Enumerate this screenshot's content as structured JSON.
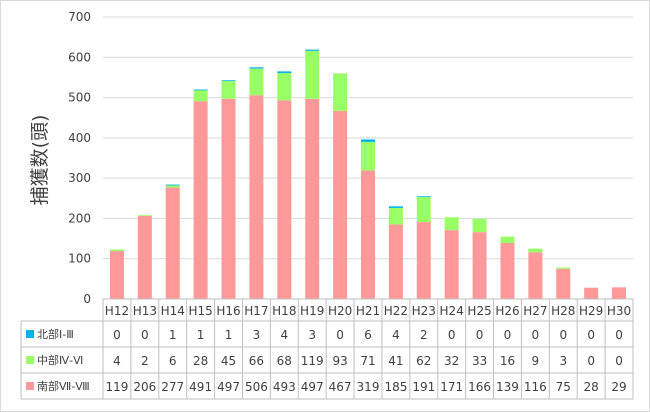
{
  "chart_data": {
    "type": "bar",
    "stacked": true,
    "ylabel": "捕獲数(頭)",
    "ylim": [
      0,
      700
    ],
    "yticks": [
      0,
      100,
      200,
      300,
      400,
      500,
      600,
      700
    ],
    "grid": true,
    "legend_placement": "data-table-left",
    "categories": [
      "H12",
      "H13",
      "H14",
      "H15",
      "H16",
      "H17",
      "H18",
      "H19",
      "H20",
      "H21",
      "H22",
      "H23",
      "H24",
      "H25",
      "H26",
      "H27",
      "H28",
      "H29",
      "H30"
    ],
    "series": [
      {
        "name": "南部Ⅶ-Ⅷ",
        "color": "#ff9999",
        "values": [
          119,
          206,
          277,
          491,
          497,
          506,
          493,
          497,
          467,
          319,
          185,
          191,
          171,
          166,
          139,
          116,
          75,
          28,
          29
        ]
      },
      {
        "name": "中部Ⅳ-Ⅵ",
        "color": "#99ff66",
        "values": [
          4,
          2,
          6,
          28,
          45,
          66,
          68,
          119,
          93,
          71,
          41,
          62,
          32,
          33,
          16,
          9,
          3,
          0,
          0
        ]
      },
      {
        "name": "北部Ⅰ-Ⅲ",
        "color": "#00b0f0",
        "values": [
          0,
          0,
          1,
          1,
          1,
          3,
          4,
          3,
          0,
          6,
          4,
          2,
          0,
          0,
          0,
          0,
          0,
          0,
          0
        ]
      }
    ],
    "table_rows": [
      "北部Ⅰ-Ⅲ",
      "中部Ⅳ-Ⅵ",
      "南部Ⅶ-Ⅷ"
    ]
  }
}
